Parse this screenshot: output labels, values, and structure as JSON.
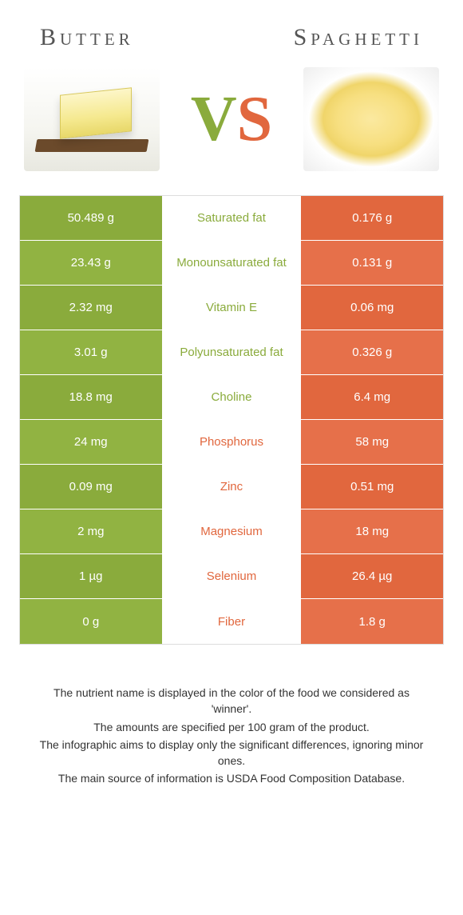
{
  "titles": {
    "left": "Butter",
    "right": "Spaghetti"
  },
  "vs": {
    "v": "V",
    "s": "S"
  },
  "colors": {
    "butter": "#8aab3c",
    "spaghetti": "#e1673e",
    "left_alt": "#91b342",
    "right_alt": "#e6704a"
  },
  "rows": [
    {
      "left": "50.489 g",
      "name": "Saturated fat",
      "right": "0.176 g",
      "winner": "butter"
    },
    {
      "left": "23.43 g",
      "name": "Monounsaturated fat",
      "right": "0.131 g",
      "winner": "butter"
    },
    {
      "left": "2.32 mg",
      "name": "Vitamin E",
      "right": "0.06 mg",
      "winner": "butter"
    },
    {
      "left": "3.01 g",
      "name": "Polyunsaturated fat",
      "right": "0.326 g",
      "winner": "butter"
    },
    {
      "left": "18.8 mg",
      "name": "Choline",
      "right": "6.4 mg",
      "winner": "butter"
    },
    {
      "left": "24 mg",
      "name": "Phosphorus",
      "right": "58 mg",
      "winner": "spaghetti"
    },
    {
      "left": "0.09 mg",
      "name": "Zinc",
      "right": "0.51 mg",
      "winner": "spaghetti"
    },
    {
      "left": "2 mg",
      "name": "Magnesium",
      "right": "18 mg",
      "winner": "spaghetti"
    },
    {
      "left": "1 µg",
      "name": "Selenium",
      "right": "26.4 µg",
      "winner": "spaghetti"
    },
    {
      "left": "0 g",
      "name": "Fiber",
      "right": "1.8 g",
      "winner": "spaghetti"
    }
  ],
  "footnotes": [
    "The nutrient name is displayed in the color of the food we considered as 'winner'.",
    "The amounts are specified per 100 gram of the product.",
    "The infographic aims to display only the significant differences, ignoring minor ones.",
    "The main source of information is USDA Food Composition Database."
  ]
}
